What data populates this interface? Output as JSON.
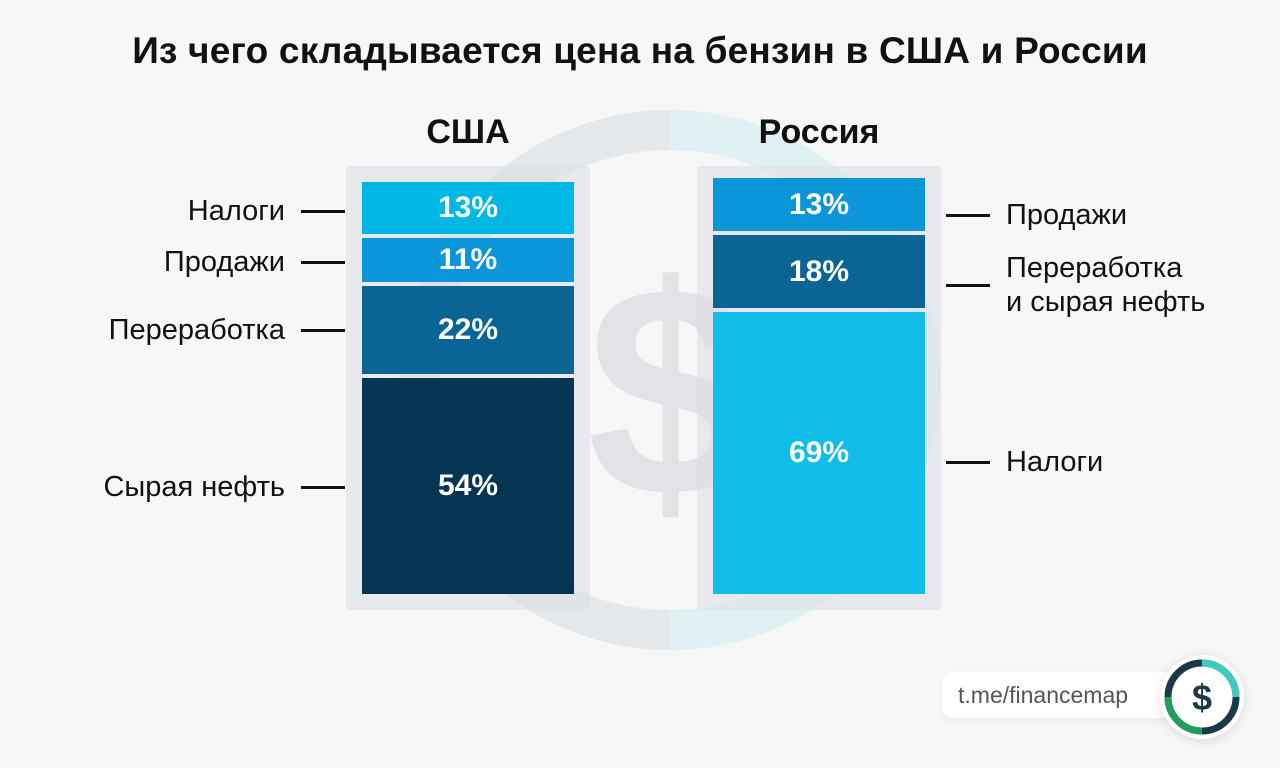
{
  "title": "Из чего складывается цена на бензин в США и России",
  "colors": {
    "light_blue": "#00b8e6",
    "mid_blue": "#0a96d8",
    "steel_blue": "#0a6496",
    "navy": "#053552",
    "russia_top": "#0a96d8",
    "russia_mid": "#0a6496",
    "russia_bottom": "#10bde9"
  },
  "chart_data": [
    {
      "type": "bar",
      "stacked": true,
      "category": "США",
      "segments": [
        {
          "name": "Налоги",
          "value": 13,
          "label": "13%",
          "color": "#00b8e6"
        },
        {
          "name": "Продажи",
          "value": 11,
          "label": "11%",
          "color": "#0a96d8"
        },
        {
          "name": "Переработка",
          "value": 22,
          "label": "22%",
          "color": "#0a6496"
        },
        {
          "name": "Сырая нефть",
          "value": 54,
          "label": "54%",
          "color": "#053552"
        }
      ]
    },
    {
      "type": "bar",
      "stacked": true,
      "category": "Россия",
      "segments": [
        {
          "name": "Продажи",
          "value": 13,
          "label": "13%",
          "color": "#0a96d8"
        },
        {
          "name": "Переработка\nи сырая нефть",
          "value": 18,
          "label": "18%",
          "color": "#0a6496"
        },
        {
          "name": "Налоги",
          "value": 69,
          "label": "69%",
          "color": "#10bde9"
        }
      ]
    }
  ],
  "footer": {
    "channel_link": "t.me/financemap",
    "logo_icon": "dollar-icon"
  }
}
